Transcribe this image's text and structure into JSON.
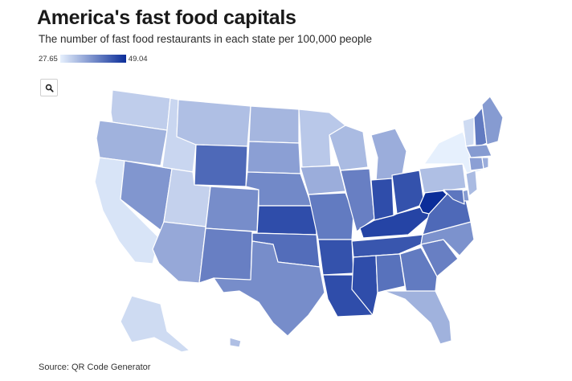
{
  "header": {
    "title": "America's fast food capitals",
    "subtitle": "The number of fast food restaurants in each state per 100,000 people"
  },
  "legend": {
    "min_label": "27.65",
    "max_label": "49.04",
    "min_value": 27.65,
    "max_value": 49.04,
    "low_color": "#e6f0fd",
    "high_color": "#0b2d99"
  },
  "controls": {
    "zoom_icon": "search-icon"
  },
  "source": "Source: QR Code Generator",
  "map_data": {
    "metric": "fast food restaurants per 100,000 people",
    "states": [
      {
        "id": "WA",
        "value": 31.5
      },
      {
        "id": "OR",
        "value": 34.5
      },
      {
        "id": "CA",
        "value": 29.0
      },
      {
        "id": "NV",
        "value": 37.5
      },
      {
        "id": "ID",
        "value": 30.5
      },
      {
        "id": "MT",
        "value": 33.0
      },
      {
        "id": "WY",
        "value": 42.5
      },
      {
        "id": "UT",
        "value": 31.0
      },
      {
        "id": "AZ",
        "value": 35.5
      },
      {
        "id": "CO",
        "value": 38.5
      },
      {
        "id": "NM",
        "value": 40.0
      },
      {
        "id": "ND",
        "value": 34.0
      },
      {
        "id": "SD",
        "value": 36.5
      },
      {
        "id": "NE",
        "value": 39.0
      },
      {
        "id": "KS",
        "value": 45.5
      },
      {
        "id": "OK",
        "value": 42.0
      },
      {
        "id": "TX",
        "value": 38.5
      },
      {
        "id": "MN",
        "value": 32.0
      },
      {
        "id": "IA",
        "value": 35.0
      },
      {
        "id": "MO",
        "value": 40.5
      },
      {
        "id": "AR",
        "value": 45.0
      },
      {
        "id": "LA",
        "value": 45.5
      },
      {
        "id": "WI",
        "value": 33.5
      },
      {
        "id": "IL",
        "value": 40.0
      },
      {
        "id": "MI",
        "value": 35.0
      },
      {
        "id": "IN",
        "value": 45.5
      },
      {
        "id": "OH",
        "value": 45.0
      },
      {
        "id": "KY",
        "value": 46.5
      },
      {
        "id": "TN",
        "value": 44.5
      },
      {
        "id": "MS",
        "value": 45.5
      },
      {
        "id": "AL",
        "value": 41.5
      },
      {
        "id": "GA",
        "value": 40.5
      },
      {
        "id": "FL",
        "value": 34.5
      },
      {
        "id": "SC",
        "value": 40.0
      },
      {
        "id": "NC",
        "value": 38.0
      },
      {
        "id": "VA",
        "value": 42.5
      },
      {
        "id": "WV",
        "value": 49.04
      },
      {
        "id": "PA",
        "value": 33.0
      },
      {
        "id": "NY",
        "value": 27.65
      },
      {
        "id": "VT",
        "value": 30.0
      },
      {
        "id": "NH",
        "value": 40.5
      },
      {
        "id": "ME",
        "value": 37.0
      },
      {
        "id": "MA",
        "value": 37.0
      },
      {
        "id": "CT",
        "value": 36.5
      },
      {
        "id": "RI",
        "value": 35.0
      },
      {
        "id": "NJ",
        "value": 33.5
      },
      {
        "id": "DE",
        "value": 37.0
      },
      {
        "id": "MD",
        "value": 41.0
      },
      {
        "id": "AK",
        "value": 30.0
      },
      {
        "id": "HI",
        "value": 33.0
      }
    ]
  }
}
